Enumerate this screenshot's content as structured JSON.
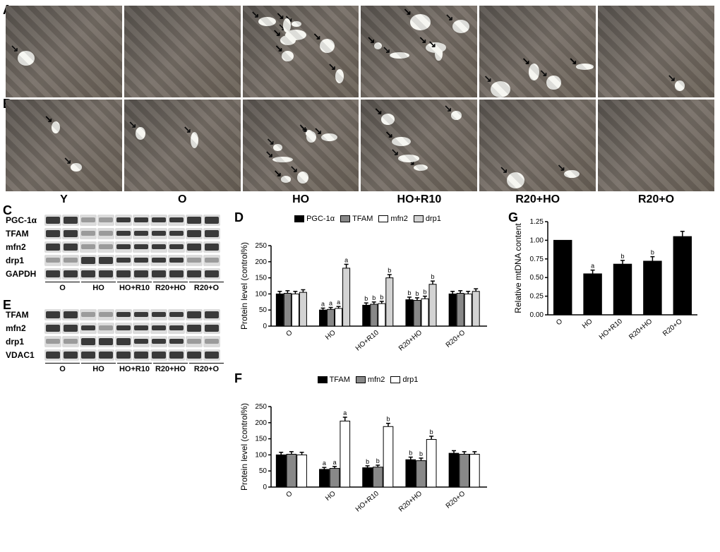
{
  "panels": {
    "A": {
      "label": "A"
    },
    "B": {
      "label": "B"
    },
    "C": {
      "label": "C"
    },
    "D": {
      "label": "D"
    },
    "E": {
      "label": "E"
    },
    "F": {
      "label": "F"
    },
    "G": {
      "label": "G"
    }
  },
  "conditions": [
    "Y",
    "O",
    "HO",
    "HO+R10",
    "R20+HO",
    "R20+O"
  ],
  "blot_conditions": [
    "O",
    "HO",
    "HO+R10",
    "R20+HO",
    "R20+O"
  ],
  "micrographs": {
    "rowA_vacuoles": [
      1,
      0,
      8,
      6,
      4,
      1
    ],
    "rowB_vacuoles": [
      2,
      2,
      7,
      5,
      2,
      0
    ]
  },
  "blotC": {
    "proteins": [
      "PGC-1α",
      "TFAM",
      "mfn2",
      "drp1",
      "GAPDH"
    ],
    "intensities": {
      "PGC-1α": [
        0.95,
        1.0,
        0.5,
        0.5,
        0.65,
        0.7,
        0.8,
        0.85,
        1.0,
        1.0
      ],
      "TFAM": [
        1.0,
        0.95,
        0.5,
        0.5,
        0.7,
        0.65,
        0.85,
        0.8,
        1.0,
        1.0
      ],
      "mfn2": [
        1.0,
        1.0,
        0.55,
        0.5,
        0.7,
        0.7,
        0.85,
        0.8,
        1.0,
        1.0
      ],
      "drp1": [
        0.5,
        0.5,
        1.0,
        1.0,
        0.85,
        0.8,
        0.7,
        0.7,
        0.5,
        0.55
      ],
      "GAPDH": [
        1.0,
        1.0,
        1.0,
        1.0,
        1.0,
        1.0,
        1.0,
        1.0,
        1.0,
        1.0
      ]
    }
  },
  "blotE": {
    "proteins": [
      "TFAM",
      "mfn2",
      "drp1",
      "VDAC1"
    ],
    "intensities": {
      "TFAM": [
        1.0,
        1.0,
        0.55,
        0.55,
        0.6,
        0.6,
        0.85,
        0.85,
        1.0,
        1.0
      ],
      "mfn2": [
        1.0,
        1.0,
        0.6,
        0.55,
        0.65,
        0.6,
        0.8,
        0.85,
        1.0,
        1.0
      ],
      "drp1": [
        0.4,
        0.4,
        1.0,
        1.0,
        0.95,
        0.9,
        0.7,
        0.7,
        0.45,
        0.45
      ],
      "VDAC1": [
        1.0,
        1.0,
        1.0,
        1.0,
        1.0,
        1.0,
        1.0,
        1.0,
        1.0,
        1.0
      ]
    }
  },
  "chartD": {
    "type": "grouped-bar",
    "ylabel": "Protein level (control%)",
    "ylim": [
      0,
      250
    ],
    "ytick_step": 50,
    "categories": [
      "O",
      "HO",
      "HO+R10",
      "R20+HO",
      "R20+O"
    ],
    "series": [
      "PGC-1α",
      "TFAM",
      "mfn2",
      "drp1"
    ],
    "colors": [
      "#000000",
      "#888888",
      "#ffffff",
      "#d3d3d3"
    ],
    "values": {
      "O": [
        100,
        102,
        100,
        105
      ],
      "HO": [
        50,
        52,
        55,
        180
      ],
      "HO+R10": [
        65,
        68,
        70,
        150
      ],
      "R20+HO": [
        82,
        80,
        85,
        130
      ],
      "R20+O": [
        100,
        102,
        100,
        108
      ]
    },
    "errors": {
      "O": [
        8,
        8,
        8,
        8
      ],
      "HO": [
        6,
        6,
        6,
        12
      ],
      "HO+R10": [
        7,
        7,
        7,
        10
      ],
      "R20+HO": [
        8,
        8,
        8,
        10
      ],
      "R20+O": [
        8,
        8,
        8,
        8
      ]
    },
    "sig": {
      "HO": [
        "a",
        "a",
        "a",
        "a"
      ],
      "HO+R10": [
        "b",
        "b",
        "b",
        "b"
      ],
      "R20+HO": [
        "b",
        "b",
        "b",
        "b"
      ]
    },
    "label_fontsize": 12,
    "tick_fontsize": 10,
    "background_color": "#ffffff",
    "bar_width": 0.18
  },
  "chartF": {
    "type": "grouped-bar",
    "ylabel": "Protein level (control%)",
    "ylim": [
      0,
      250
    ],
    "ytick_step": 50,
    "categories": [
      "O",
      "HO",
      "HO+R10",
      "R20+HO",
      "R20+O"
    ],
    "series": [
      "TFAM",
      "mfn2",
      "drp1"
    ],
    "colors": [
      "#000000",
      "#888888",
      "#ffffff"
    ],
    "values": {
      "O": [
        100,
        102,
        100
      ],
      "HO": [
        55,
        58,
        205
      ],
      "HO+R10": [
        60,
        62,
        188
      ],
      "R20+HO": [
        85,
        82,
        148
      ],
      "R20+O": [
        105,
        102,
        102
      ]
    },
    "errors": {
      "O": [
        8,
        8,
        8
      ],
      "HO": [
        6,
        6,
        12
      ],
      "HO+R10": [
        6,
        6,
        10
      ],
      "R20+HO": [
        8,
        8,
        10
      ],
      "R20+O": [
        8,
        8,
        8
      ]
    },
    "sig": {
      "HO": [
        "a",
        "a",
        "a"
      ],
      "HO+R10": [
        "b",
        "b",
        "b"
      ],
      "R20+HO": [
        "b",
        "b",
        "b"
      ]
    },
    "label_fontsize": 12,
    "tick_fontsize": 10,
    "background_color": "#ffffff",
    "bar_width": 0.24
  },
  "chartG": {
    "type": "bar",
    "ylabel": "Relative mtDNA content",
    "ylim": [
      0,
      1.25
    ],
    "ytick_step": 0.25,
    "categories": [
      "O",
      "HO",
      "HO+R10",
      "R20+HO",
      "R20+O"
    ],
    "values": [
      1.0,
      0.55,
      0.68,
      0.72,
      1.05
    ],
    "errors": [
      0,
      0.05,
      0.05,
      0.06,
      0.07
    ],
    "sig": [
      "",
      "a",
      "b",
      "b",
      ""
    ],
    "color": "#000000",
    "label_fontsize": 12,
    "tick_fontsize": 10,
    "background_color": "#ffffff",
    "bar_width": 0.6
  }
}
